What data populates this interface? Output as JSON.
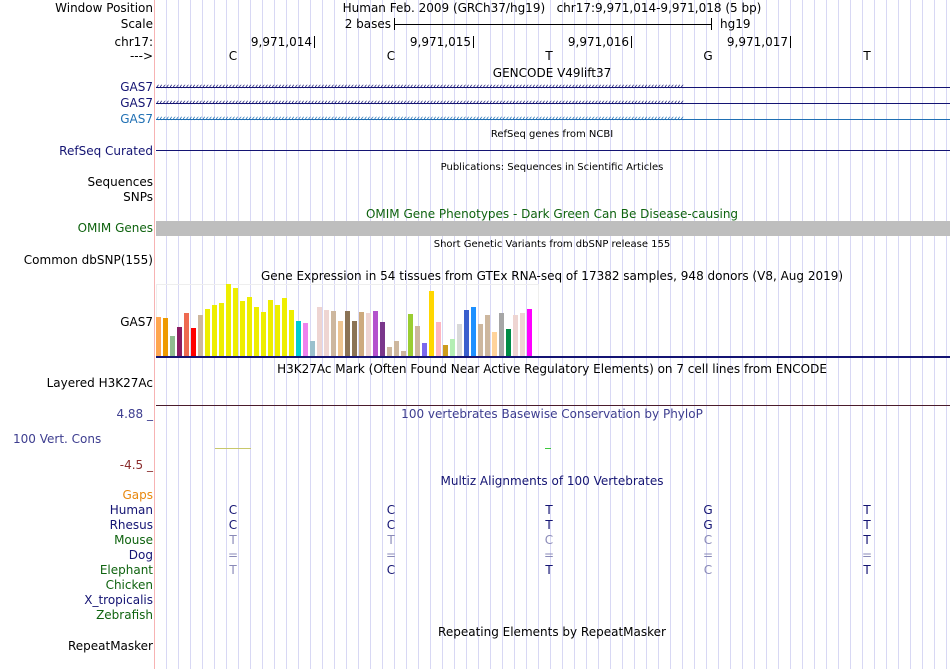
{
  "labels": {
    "window_position": "Window Position",
    "scale": "Scale",
    "chrom": "chr17:",
    "strand": "--->",
    "gas7_1": "GAS7",
    "gas7_2": "GAS7",
    "gas7_3": "GAS7",
    "refseq_curated": "RefSeq Curated",
    "sequences": "Sequences",
    "snps": "SNPs",
    "omim_genes": "OMIM Genes",
    "common_dbsnp": "Common dbSNP(155)",
    "gtex_gas7": "GAS7",
    "h3k27ac": "Layered H3K27Ac",
    "phylop_max": "4.88 _",
    "vert_cons": "100 Vert. Cons",
    "phylop_min": "-4.5 _",
    "repeatmasker": "RepeatMasker"
  },
  "header": {
    "position_text": "Human Feb. 2009 (GRCh37/hg19)   chr17:9,971,014-9,971,018 (5 bp)",
    "scale_text": "2 bases",
    "assembly": "hg19",
    "coordinates": [
      "9,971,014",
      "9,971,015",
      "9,971,016",
      "9,971,017"
    ],
    "bases": [
      "C",
      "C",
      "T",
      "G",
      "T"
    ]
  },
  "tracks": {
    "gencode_title": "GENCODE V49lift37",
    "refseq_title": "RefSeq genes from NCBI",
    "publications_title": "Publications: Sequences in Scientific Articles",
    "omim_title": "OMIM Gene Phenotypes - Dark Green Can Be Disease-causing",
    "dbsnp_title": "Short Genetic Variants from dbSNP release 155",
    "gtex_title": "Gene Expression in 54 tissues from GTEx RNA-seq of 17382 samples, 948 donors (V8, Aug 2019)",
    "h3k27ac_title": "H3K27Ac Mark (Often Found Near Active Regulatory Elements) on 7 cell lines from ENCODE",
    "phylop_title": "100 vertebrates Basewise Conservation by PhyloP",
    "multiz_title": "Multiz Alignments of 100 Vertebrates",
    "repeat_title": "Repeating Elements by RepeatMasker"
  },
  "gtex": {
    "relative_expression": [
      0.54,
      0.53,
      0.28,
      0.4,
      0.6,
      0.39,
      0.57,
      0.65,
      0.71,
      0.74,
      1.0,
      0.94,
      0.76,
      0.82,
      0.68,
      0.61,
      0.78,
      0.71,
      0.81,
      0.64,
      0.49,
      0.46,
      0.21,
      0.68,
      0.64,
      0.63,
      0.49,
      0.63,
      0.49,
      0.61,
      0.6,
      0.63,
      0.47,
      0.13,
      0.21,
      0.07,
      0.58,
      0.42,
      0.18,
      0.9,
      0.47,
      0.15,
      0.24,
      0.44,
      0.64,
      0.68,
      0.44,
      0.57,
      0.33,
      0.6,
      0.38,
      0.57,
      0.6,
      0.65
    ],
    "colors": [
      "#FFA54F",
      "#EE9A00",
      "#8FBC8F",
      "#8B1C62",
      "#EE6A50",
      "#FF0000",
      "#CDB79E",
      "#EEEE00",
      "#EEEE00",
      "#EEEE00",
      "#EEEE00",
      "#EEEE00",
      "#EEEE00",
      "#EEEE00",
      "#EEEE00",
      "#EEEE00",
      "#EEEE00",
      "#EEEE00",
      "#EEEE00",
      "#EEEE00",
      "#00CED1",
      "#EE82EE",
      "#9AC0CD",
      "#EED5D2",
      "#EED5D2",
      "#CDB79E",
      "#EEC591",
      "#8B7355",
      "#8B7355",
      "#CDAA7D",
      "#EED5D2",
      "#B452CD",
      "#7A378B",
      "#CDB79E",
      "#CDB79E",
      "#CDB79E",
      "#9ACD32",
      "#CDB79E",
      "#7B68EE",
      "#FFD700",
      "#FFB6C1",
      "#CD9B1D",
      "#B4EEB4",
      "#D9D9D9",
      "#3A5FCD",
      "#1E90FF",
      "#CDB79E",
      "#CDB79E",
      "#FFD39B",
      "#A6A6A6",
      "#008B45",
      "#EED5D2",
      "#EED5D2",
      "#FF00FF"
    ]
  },
  "multiz": {
    "gaps_label": "Gaps",
    "species": [
      {
        "name": "Human",
        "color": "#141473",
        "bases": [
          "C",
          "C",
          "T",
          "G",
          "T"
        ],
        "dim": [
          false,
          false,
          false,
          false,
          false
        ]
      },
      {
        "name": "Rhesus",
        "color": "#141473",
        "bases": [
          "C",
          "C",
          "T",
          "G",
          "T"
        ],
        "dim": [
          false,
          false,
          false,
          false,
          false
        ]
      },
      {
        "name": "Mouse",
        "color": "#0f630f",
        "bases": [
          "T",
          "T",
          "C",
          "C",
          "T"
        ],
        "dim": [
          true,
          true,
          true,
          true,
          false
        ]
      },
      {
        "name": "Dog",
        "color": "#141473",
        "bases": [
          "=",
          "=",
          "=",
          "=",
          "="
        ],
        "dim": [
          true,
          true,
          true,
          true,
          true
        ]
      },
      {
        "name": "Elephant",
        "color": "#0f630f",
        "bases": [
          "T",
          "C",
          "T",
          "C",
          "T"
        ],
        "dim": [
          true,
          false,
          false,
          true,
          false
        ]
      },
      {
        "name": "Chicken",
        "color": "#0f630f",
        "bases": [],
        "dim": []
      },
      {
        "name": "X_tropicalis",
        "color": "#141473",
        "bases": [],
        "dim": []
      },
      {
        "name": "Zebrafish",
        "color": "#0f630f",
        "bases": [],
        "dim": []
      }
    ]
  },
  "colors": {
    "gencode": "#141473",
    "gencode_alt": "#1f6fb3",
    "omim": "#0f630f",
    "phylop": "#3d3d8f",
    "gaps": "#e8880e"
  }
}
